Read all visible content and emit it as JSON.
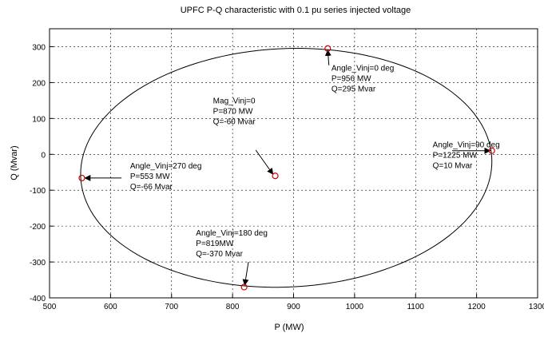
{
  "chart_data": {
    "type": "scatter",
    "title": "UPFC  P-Q characteristic with 0.1 pu series injected voltage",
    "xlabel": "P (MW)",
    "ylabel": "Q (Mvar)",
    "xlim": [
      500,
      1300
    ],
    "ylim": [
      -400,
      350
    ],
    "xticks": [
      500,
      600,
      700,
      800,
      900,
      1000,
      1100,
      1200,
      1300
    ],
    "yticks": [
      -400,
      -300,
      -200,
      -100,
      0,
      100,
      200,
      300
    ],
    "grid": true,
    "ellipse": {
      "center_p": 888,
      "center_q": -37.5,
      "half_width_p": 337.5,
      "half_height_q": 332.5,
      "tilt_deg": 3
    },
    "points": [
      {
        "p": 956,
        "q": 295
      },
      {
        "p": 1225,
        "q": 10
      },
      {
        "p": 819,
        "q": -370
      },
      {
        "p": 553,
        "q": -66
      },
      {
        "p": 870,
        "q": -60
      }
    ],
    "annotations": [
      {
        "lines": [
          "Angle_Vinj=0 deg",
          "P=956 MW",
          "Q=295 Mvar"
        ],
        "text_at": [
          962,
          233
        ],
        "arrow_from": [
          958,
          248
        ],
        "arrow_to": [
          956,
          290
        ]
      },
      {
        "lines": [
          "Angle_Vinj=90 deg",
          "P=1225 MW",
          "Q=10 Mvar"
        ],
        "text_at": [
          1128,
          20
        ],
        "arrow_from": [
          1160,
          10
        ],
        "arrow_to": [
          1222,
          10
        ]
      },
      {
        "lines": [
          "Angle_Vinj=180 deg",
          "P=819MW",
          "Q=-370 Mvar"
        ],
        "text_at": [
          740,
          -226
        ],
        "arrow_from": [
          826,
          -300
        ],
        "arrow_to": [
          820,
          -364
        ]
      },
      {
        "lines": [
          "Angle_Vinj=270 deg",
          "P=553 MW",
          "Q=-66 Mvar"
        ],
        "text_at": [
          632,
          -40
        ],
        "arrow_from": [
          618,
          -66
        ],
        "arrow_to": [
          558,
          -66
        ]
      },
      {
        "lines": [
          "Mag_Vinj=0",
          "P=870 MW",
          "Q=-60 Mvar"
        ],
        "text_at": [
          768,
          142
        ],
        "arrow_from": [
          838,
          12
        ],
        "arrow_to": [
          866,
          -55
        ]
      }
    ]
  }
}
